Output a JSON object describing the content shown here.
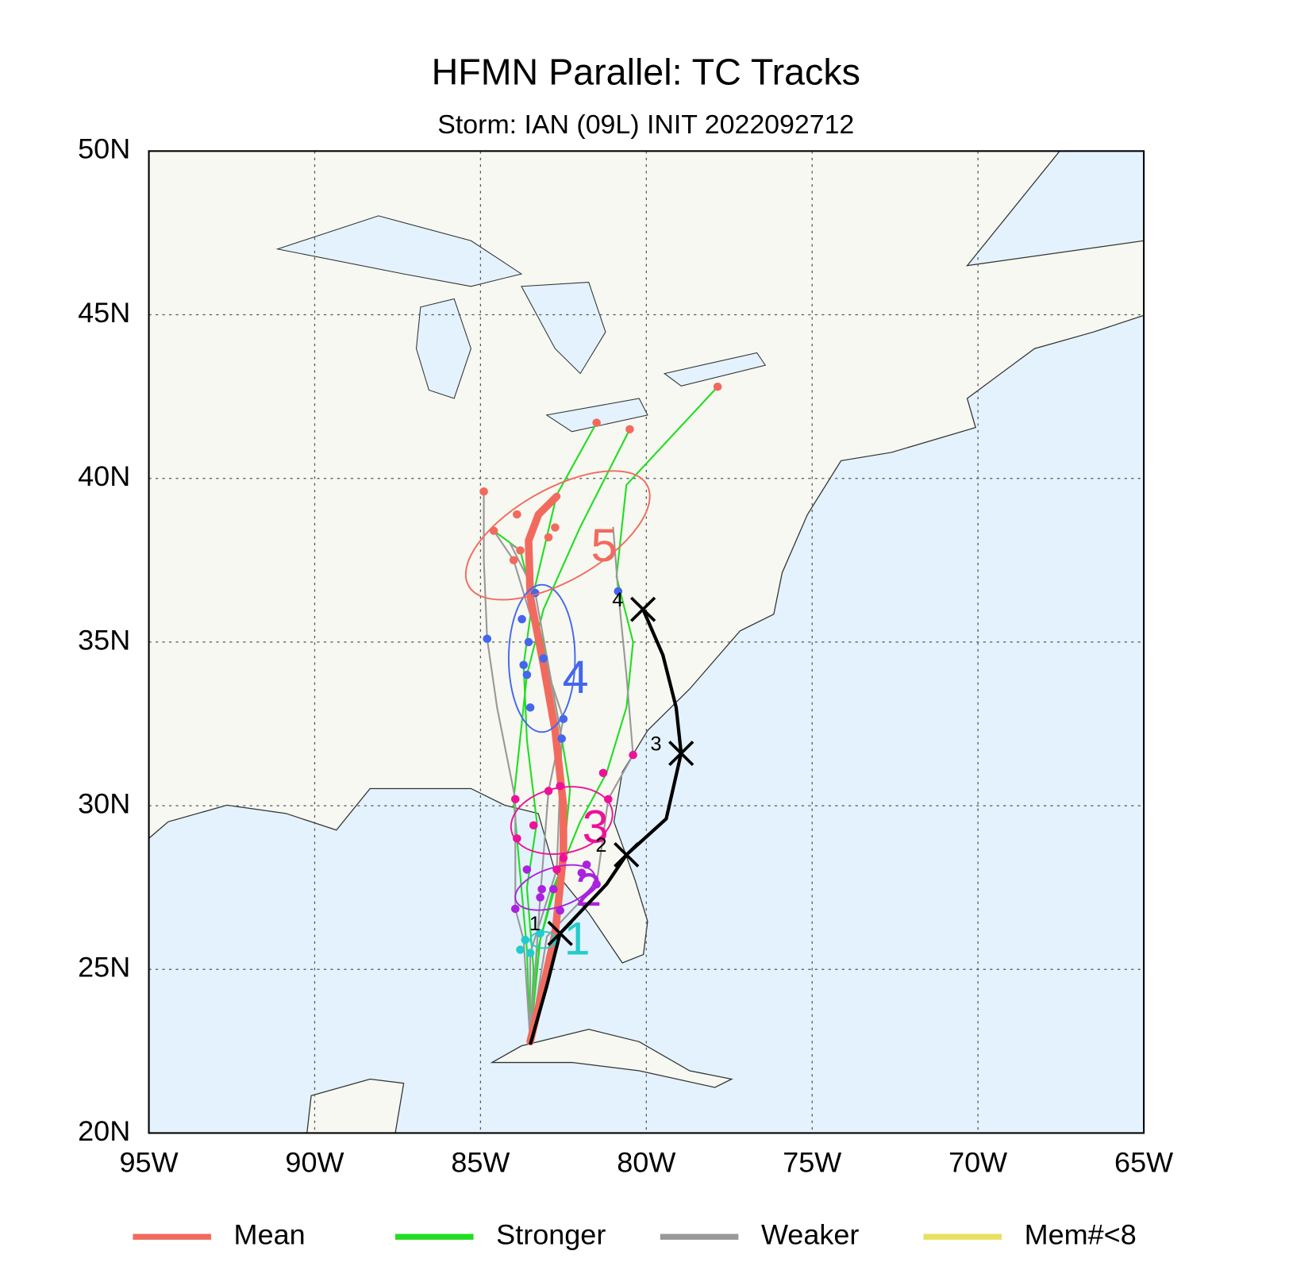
{
  "chart_data": {
    "type": "track-map",
    "title": "HFMN Parallel: TC Tracks",
    "subtitle": "Storm: IAN (09L) INIT 2022092712",
    "xlim": [
      -95,
      -65
    ],
    "ylim": [
      20,
      50
    ],
    "xticks": [
      {
        "value": -95,
        "label": "95W"
      },
      {
        "value": -90,
        "label": "90W"
      },
      {
        "value": -85,
        "label": "85W"
      },
      {
        "value": -80,
        "label": "80W"
      },
      {
        "value": -75,
        "label": "75W"
      },
      {
        "value": -70,
        "label": "70W"
      },
      {
        "value": -65,
        "label": "65W"
      }
    ],
    "yticks": [
      {
        "value": 20,
        "label": "20N"
      },
      {
        "value": 25,
        "label": "25N"
      },
      {
        "value": 30,
        "label": "30N"
      },
      {
        "value": 35,
        "label": "35N"
      },
      {
        "value": 40,
        "label": "40N"
      },
      {
        "value": 45,
        "label": "45N"
      },
      {
        "value": 50,
        "label": "50N"
      }
    ],
    "grid": true,
    "series": [
      {
        "name": "Mean",
        "color": "#f26a5e",
        "tracks": [
          {
            "lon": [
              -83.5,
              -83.1,
              -82.75,
              -82.5,
              -82.5,
              -82.75,
              -83.1,
              -83.5,
              -83.55,
              -83.25,
              -82.7
            ],
            "lat": [
              22.8,
              24.5,
              26.1,
              28.5,
              30.0,
              32.3,
              34.3,
              36.4,
              38.1,
              38.9,
              39.45
            ]
          }
        ]
      },
      {
        "name": "Stronger",
        "color": "#22dd22",
        "tracks": [
          {
            "lon": [
              -83.5,
              -83.3,
              -82.8,
              -82.0,
              -81.2,
              -80.6,
              -80.4,
              -80.9,
              -80.6,
              -77.85
            ],
            "lat": [
              22.8,
              25.5,
              27.5,
              29.5,
              31.0,
              33.0,
              35.0,
              37.0,
              39.8,
              42.8
            ]
          },
          {
            "lon": [
              -83.5,
              -83.4,
              -83.6,
              -83.3,
              -83.6,
              -83.7,
              -83.4,
              -82.7,
              -81.5
            ],
            "lat": [
              22.8,
              25.0,
              27.5,
              29.5,
              32.0,
              34.3,
              36.5,
              39.5,
              41.7
            ]
          },
          {
            "lon": [
              -83.5,
              -83.2,
              -82.5,
              -82.3,
              -82.55,
              -83.0,
              -83.8,
              -84.6
            ],
            "lat": [
              22.8,
              25.9,
              28.4,
              30.5,
              32.05,
              34.5,
              37.8,
              38.4
            ]
          },
          {
            "lon": [
              -83.5,
              -83.6,
              -83.9,
              -84.0,
              -83.6,
              -83.1,
              -82.0,
              -80.5
            ],
            "lat": [
              22.8,
              25.6,
              29.0,
              30.2,
              34.0,
              36.0,
              38.5,
              41.5
            ]
          }
        ]
      },
      {
        "name": "Weaker",
        "color": "#999999",
        "tracks": [
          {
            "lon": [
              -83.5,
              -83.7,
              -83.95,
              -83.95,
              -84.5,
              -84.8,
              -84.9,
              -84.9
            ],
            "lat": [
              22.8,
              25.9,
              26.85,
              30.2,
              33.0,
              35.1,
              37.5,
              39.6
            ]
          },
          {
            "lon": [
              -83.5,
              -83.0,
              -81.5,
              -81.15,
              -80.4,
              -80.6,
              -80.85,
              -81.0
            ],
            "lat": [
              22.8,
              26.0,
              27.6,
              30.2,
              31.55,
              34.0,
              36.55,
              38.5
            ]
          },
          {
            "lon": [
              -83.5,
              -83.2,
              -82.95,
              -82.5,
              -83.1,
              -84.0,
              -84.6
            ],
            "lat": [
              22.8,
              27.2,
              30.45,
              32.65,
              34.5,
              37.5,
              38.4
            ]
          },
          {
            "lon": [
              -83.5,
              -83.5,
              -82.7,
              -82.55,
              -83.35,
              -84.1,
              -83.8
            ],
            "lat": [
              22.8,
              25.5,
              28.05,
              32.05,
              36.5,
              38.0,
              37.8
            ]
          }
        ]
      },
      {
        "name": "Mem#<8",
        "color": "#e8e060",
        "tracks": []
      }
    ],
    "official_track": {
      "color": "#000000",
      "lon": [
        -83.5,
        -83.0,
        -82.6,
        -81.2,
        -80.6,
        -79.4,
        -78.95,
        -79.1,
        -79.5,
        -80.1
      ],
      "lat": [
        22.7,
        24.5,
        26.1,
        27.6,
        28.5,
        29.6,
        31.6,
        33.0,
        34.6,
        36.0
      ],
      "markers": [
        {
          "label": "1",
          "lon": -82.6,
          "lat": 26.1
        },
        {
          "label": "2",
          "lon": -80.6,
          "lat": 28.5
        },
        {
          "label": "3",
          "lon": -78.95,
          "lat": 31.6
        },
        {
          "label": "4",
          "lon": -80.1,
          "lat": 36.0
        }
      ]
    },
    "spread": [
      {
        "label": "1",
        "color": "#22cccc",
        "lon": -83.1,
        "lat": 25.9,
        "rx": 0.4,
        "ry": 0.25,
        "angle": 0,
        "members_lon": [
          -83.8,
          -83.65,
          -83.5,
          -82.75,
          -83.2
        ],
        "members_lat": [
          25.6,
          25.9,
          25.5,
          25.9,
          26.1
        ]
      },
      {
        "label": "2",
        "color": "#aa22dd",
        "lon": -82.75,
        "lat": 27.5,
        "rx": 1.25,
        "ry": 0.6,
        "angle": -18,
        "members_lon": [
          -81.8,
          -81.95,
          -81.5,
          -83.6,
          -83.15,
          -83.2,
          -83.95,
          -82.8,
          -82.6
        ],
        "members_lat": [
          28.2,
          27.95,
          27.6,
          28.05,
          27.45,
          27.2,
          26.85,
          27.45,
          26.8
        ]
      },
      {
        "label": "3",
        "color": "#ee1199",
        "lon": -82.55,
        "lat": 29.55,
        "rx": 1.55,
        "ry": 1.0,
        "angle": -12,
        "members_lon": [
          -80.4,
          -81.3,
          -81.15,
          -82.6,
          -82.95,
          -83.95,
          -83.4,
          -83.9,
          -82.5,
          -82.7
        ],
        "members_lat": [
          31.55,
          31.0,
          30.2,
          30.6,
          30.45,
          30.2,
          29.4,
          29.0,
          28.4,
          28.05
        ]
      },
      {
        "label": "4",
        "color": "#4466ee",
        "lon": -83.15,
        "lat": 34.5,
        "rx": 1.0,
        "ry": 2.25,
        "angle": 0,
        "members_lon": [
          -83.35,
          -83.75,
          -84.8,
          -83.55,
          -83.7,
          -83.6,
          -83.1,
          -83.5,
          -82.5,
          -82.55,
          -80.85
        ],
        "members_lat": [
          36.5,
          35.7,
          35.1,
          35.0,
          34.3,
          34.0,
          34.5,
          33.0,
          32.65,
          32.05,
          36.55
        ]
      },
      {
        "label": "5",
        "color": "#f26a5e",
        "lon": -82.67,
        "lat": 38.26,
        "rx": 3.1,
        "ry": 1.4,
        "angle": -30,
        "members_lon": [
          -84.9,
          -83.9,
          -84.6,
          -83.8,
          -84.0,
          -81.5,
          -80.5,
          -77.85,
          -82.75,
          -82.95
        ],
        "members_lat": [
          39.6,
          38.9,
          38.4,
          37.8,
          37.5,
          41.7,
          41.5,
          42.8,
          38.5,
          38.2
        ]
      }
    ]
  }
}
